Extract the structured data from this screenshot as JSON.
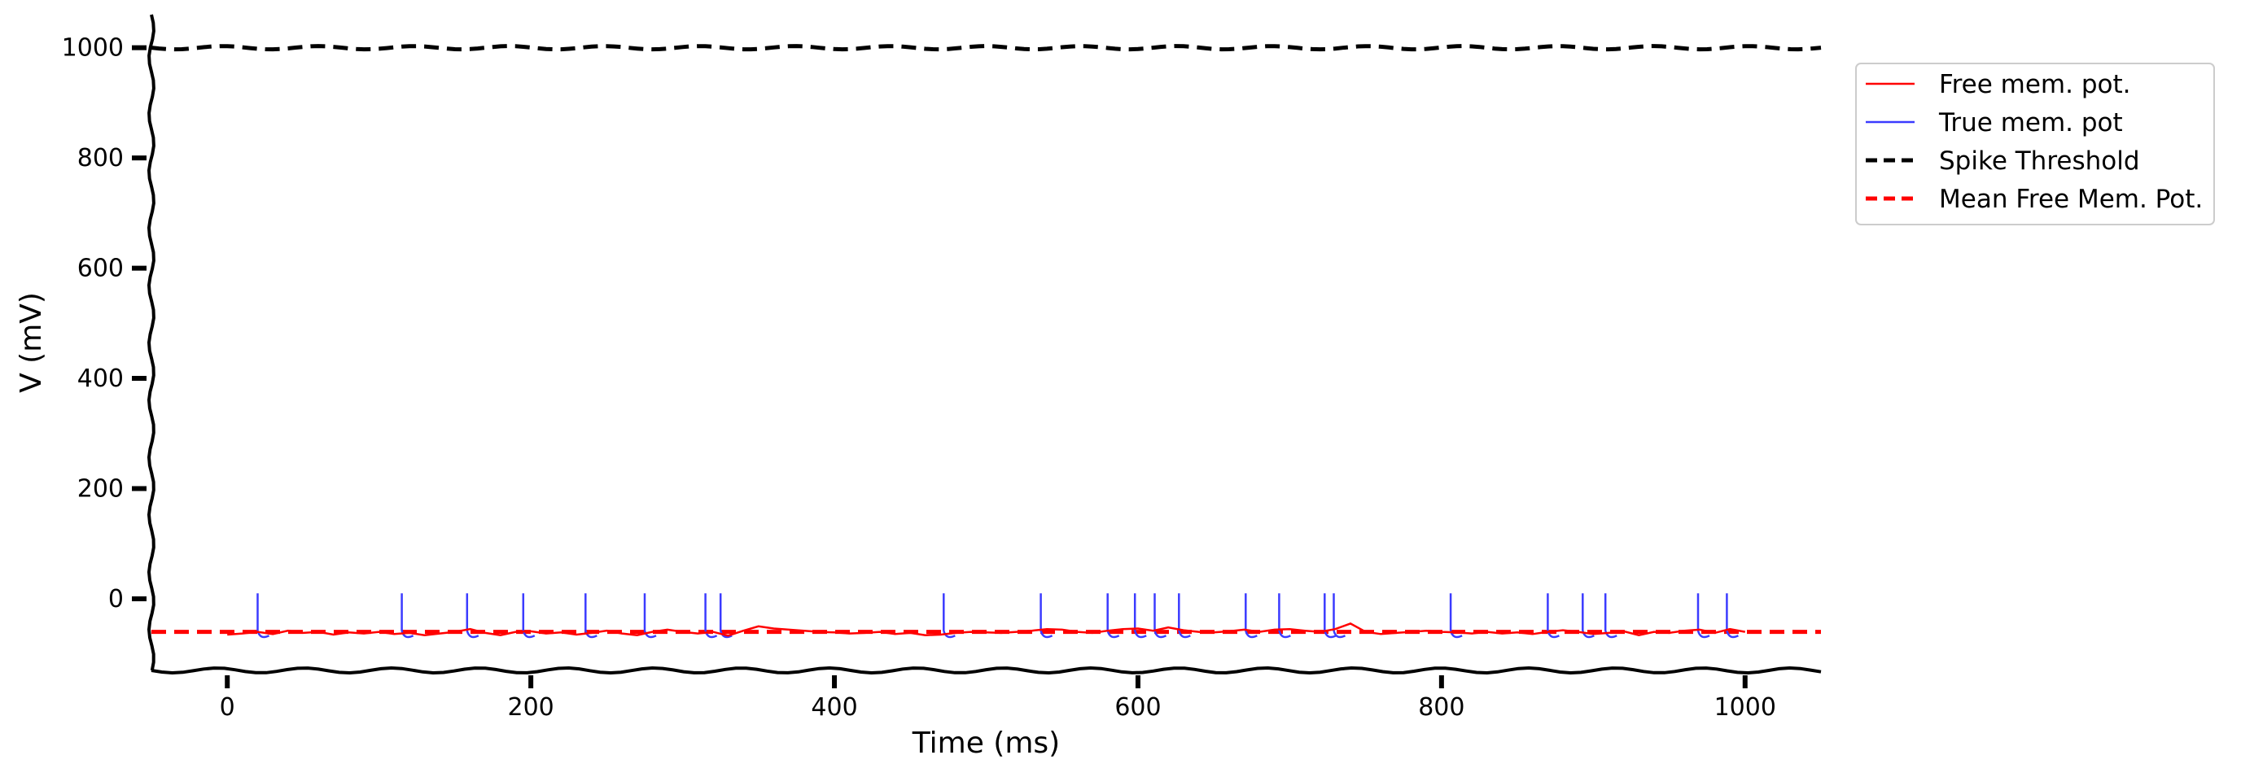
{
  "chart_data": {
    "type": "line",
    "title": "",
    "xlabel": "Time (ms)",
    "ylabel": "V (mV)",
    "xlim": [
      -50,
      1050
    ],
    "ylim": [
      -130,
      1060
    ],
    "xticks": [
      0,
      200,
      400,
      600,
      800,
      1000
    ],
    "yticks": [
      0,
      200,
      400,
      600,
      800,
      1000
    ],
    "grid": false,
    "style": "xkcd-like wobbly axes",
    "legend_position": "upper right, outside plot area",
    "series": [
      {
        "name": "Free mem. pot.",
        "style": "solid",
        "color": "#ff0000",
        "x": [
          0,
          10,
          20,
          30,
          40,
          50,
          60,
          70,
          80,
          90,
          100,
          110,
          120,
          130,
          140,
          150,
          160,
          170,
          180,
          190,
          200,
          210,
          220,
          230,
          240,
          250,
          260,
          270,
          280,
          290,
          300,
          310,
          320,
          330,
          340,
          350,
          360,
          370,
          380,
          390,
          400,
          410,
          420,
          430,
          440,
          450,
          460,
          470,
          480,
          490,
          500,
          510,
          520,
          530,
          540,
          550,
          560,
          570,
          580,
          590,
          600,
          610,
          620,
          630,
          640,
          650,
          660,
          670,
          680,
          690,
          700,
          710,
          720,
          730,
          740,
          750,
          760,
          770,
          780,
          790,
          800,
          810,
          820,
          830,
          840,
          850,
          860,
          870,
          880,
          890,
          900,
          910,
          920,
          930,
          940,
          950,
          960,
          970,
          980,
          990,
          1000
        ],
        "y": [
          -65,
          -63,
          -60,
          -64,
          -58,
          -62,
          -60,
          -65,
          -61,
          -63,
          -60,
          -64,
          -62,
          -66,
          -63,
          -60,
          -55,
          -62,
          -66,
          -60,
          -59,
          -63,
          -61,
          -65,
          -62,
          -58,
          -63,
          -66,
          -60,
          -56,
          -60,
          -63,
          -60,
          -67,
          -58,
          -50,
          -54,
          -56,
          -58,
          -60,
          -61,
          -63,
          -62,
          -60,
          -64,
          -62,
          -66,
          -65,
          -62,
          -60,
          -61,
          -62,
          -60,
          -58,
          -55,
          -56,
          -60,
          -62,
          -58,
          -55,
          -54,
          -58,
          -52,
          -57,
          -60,
          -61,
          -59,
          -56,
          -60,
          -56,
          -55,
          -58,
          -60,
          -55,
          -45,
          -60,
          -64,
          -62,
          -60,
          -58,
          -60,
          -61,
          -63,
          -60,
          -63,
          -61,
          -64,
          -60,
          -57,
          -60,
          -64,
          -62,
          -59,
          -66,
          -60,
          -62,
          -58,
          -56,
          -62,
          -55,
          -60
        ]
      },
      {
        "name": "True mem. pot",
        "style": "solid",
        "color": "#3b3bff",
        "spike_times": [
          20,
          115,
          158,
          195,
          236,
          275,
          315,
          325,
          472,
          536,
          580,
          598,
          611,
          627,
          671,
          693,
          723,
          729,
          806,
          870,
          893,
          908,
          969,
          988
        ],
        "spike_peak": 10,
        "reset_value": -75
      },
      {
        "name": "Spike Threshold",
        "style": "dashed",
        "color": "#000000",
        "x": [
          -50,
          1050
        ],
        "y": [
          1000,
          1000
        ]
      },
      {
        "name": "Mean Free Mem. Pot.",
        "style": "dashed",
        "color": "#ff0000",
        "x": [
          -50,
          1050
        ],
        "y": [
          -60,
          -60
        ]
      }
    ]
  }
}
